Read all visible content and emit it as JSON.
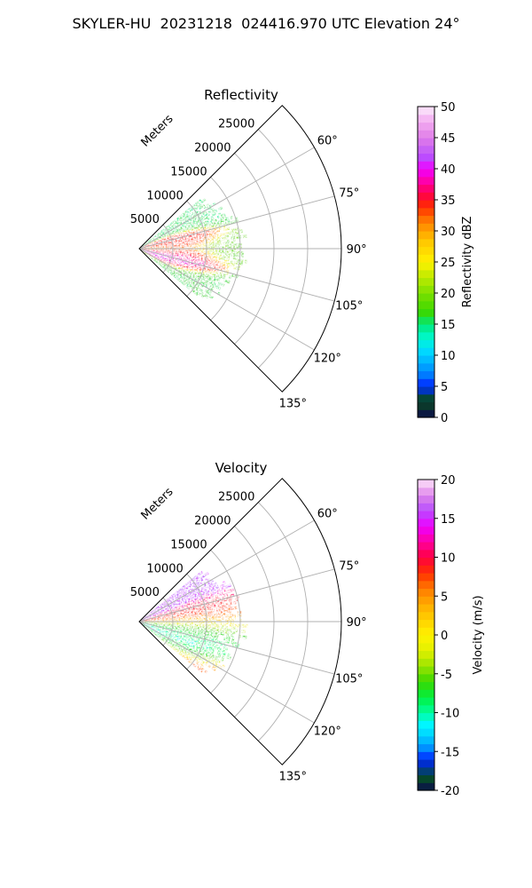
{
  "suptitle": "SKYLER-HU  20231218  024416.970 UTC Elevation 24°",
  "panels": [
    {
      "title": "Reflectivity",
      "range_axis_label": "Meters",
      "range_ticks": [
        "5000",
        "10000",
        "15000",
        "20000",
        "25000"
      ],
      "azimuth_ticks": [
        "60°",
        "75°",
        "90°",
        "105°",
        "120°",
        "135°"
      ],
      "colorbar": {
        "label": "Reflectivity dBZ",
        "ticks": [
          "0",
          "5",
          "10",
          "15",
          "20",
          "25",
          "30",
          "35",
          "40",
          "45",
          "50"
        ],
        "range": [
          0,
          50
        ]
      }
    },
    {
      "title": "Velocity",
      "range_axis_label": "Meters",
      "range_ticks": [
        "5000",
        "10000",
        "15000",
        "20000",
        "25000"
      ],
      "azimuth_ticks": [
        "60°",
        "75°",
        "90°",
        "105°",
        "120°",
        "135°"
      ],
      "colorbar": {
        "label": "Velocity (m/s)",
        "ticks": [
          "-20",
          "-15",
          "-10",
          "-5",
          "0",
          "5",
          "10",
          "15",
          "20"
        ],
        "range": [
          -20,
          20
        ]
      }
    }
  ],
  "chart_data": [
    {
      "type": "heatmap",
      "projection": "polar-sector",
      "title": "Reflectivity",
      "variable": "Reflectivity",
      "units": "dBZ",
      "azimuth_range_deg": [
        45,
        135
      ],
      "range_max_m": 30000,
      "value_range": [
        0,
        50
      ],
      "echo_extent_deg": [
        51,
        129
      ],
      "echo_range_max_m": 16000,
      "features": [
        {
          "azimuth_deg": 82,
          "range_m": 6000,
          "value": 35
        },
        {
          "azimuth_deg": 90,
          "range_m": 3000,
          "value": 28
        },
        {
          "azimuth_deg": 98,
          "range_m": 6000,
          "value": 38
        },
        {
          "azimuth_deg": 104,
          "range_m": 5000,
          "value": 40
        },
        {
          "azimuth_deg": 90,
          "range_m": 12000,
          "value": 20
        },
        {
          "azimuth_deg": 62,
          "range_m": 13000,
          "value": 15
        },
        {
          "azimuth_deg": 118,
          "range_m": 13000,
          "value": 16
        }
      ]
    },
    {
      "type": "heatmap",
      "projection": "polar-sector",
      "title": "Velocity",
      "variable": "Velocity",
      "units": "m/s",
      "azimuth_range_deg": [
        45,
        135
      ],
      "range_max_m": 30000,
      "value_range": [
        -20,
        20
      ],
      "echo_extent_deg": [
        51,
        129
      ],
      "echo_range_max_m": 16000,
      "features": [
        {
          "azimuth_deg": 62,
          "range_m": 10000,
          "value": 16
        },
        {
          "azimuth_deg": 76,
          "range_m": 10000,
          "value": 11
        },
        {
          "azimuth_deg": 84,
          "range_m": 10000,
          "value": 6
        },
        {
          "azimuth_deg": 90,
          "range_m": 10000,
          "value": 0
        },
        {
          "azimuth_deg": 96,
          "range_m": 10000,
          "value": -5
        },
        {
          "azimuth_deg": 105,
          "range_m": 10000,
          "value": -10
        },
        {
          "azimuth_deg": 118,
          "range_m": 12000,
          "value": -13
        },
        {
          "azimuth_deg": 122,
          "range_m": 14000,
          "value": 14
        }
      ]
    }
  ]
}
